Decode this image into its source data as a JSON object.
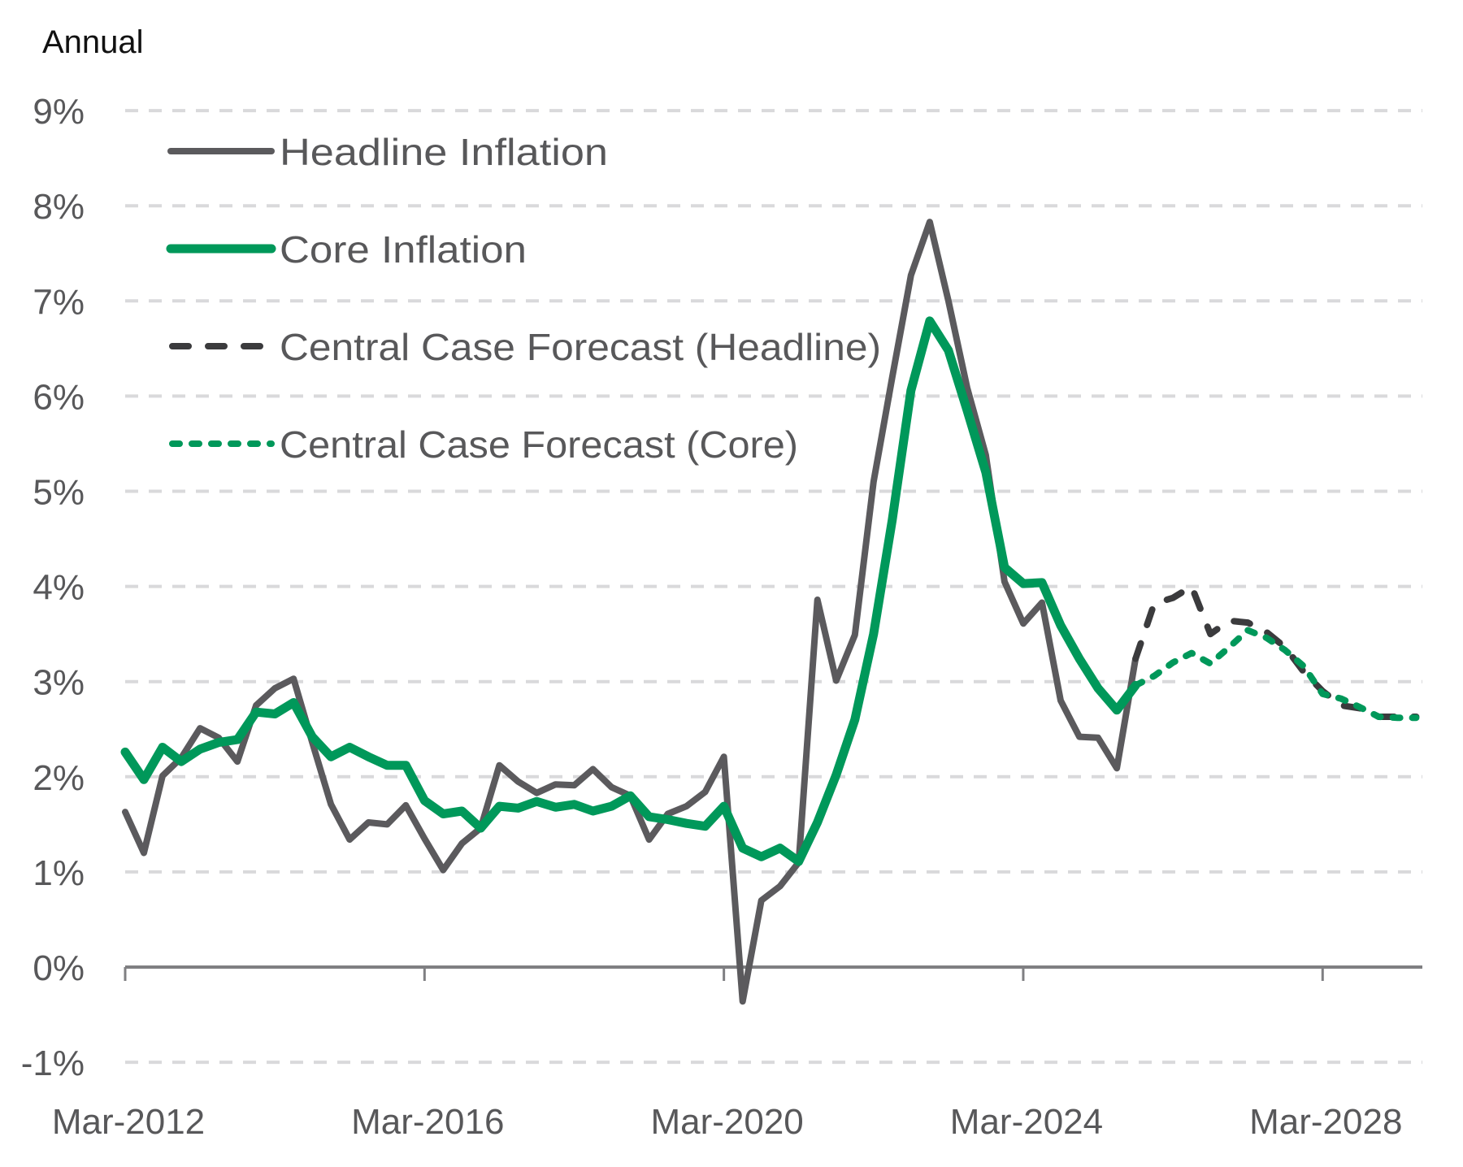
{
  "chart_data": {
    "type": "line",
    "title": "",
    "ylabel": "Annual",
    "xlabel": "",
    "ylim": [
      -1,
      9
    ],
    "yticks": [
      -1,
      0,
      1,
      2,
      3,
      4,
      5,
      6,
      7,
      8,
      9
    ],
    "ytick_labels": [
      "-1%",
      "0%",
      "1%",
      "2%",
      "3%",
      "4%",
      "5%",
      "6%",
      "7%",
      "8%",
      "9%"
    ],
    "xtick_labels": [
      "Mar-2012",
      "Mar-2016",
      "Mar-2020",
      "Mar-2024",
      "Mar-2028"
    ],
    "grid": true,
    "legend_position": "top-left",
    "x": [
      "Mar-2012",
      "Jun-2012",
      "Sep-2012",
      "Dec-2012",
      "Mar-2013",
      "Jun-2013",
      "Sep-2013",
      "Dec-2013",
      "Mar-2014",
      "Jun-2014",
      "Sep-2014",
      "Dec-2014",
      "Mar-2015",
      "Jun-2015",
      "Sep-2015",
      "Dec-2015",
      "Mar-2016",
      "Jun-2016",
      "Sep-2016",
      "Dec-2016",
      "Mar-2017",
      "Jun-2017",
      "Sep-2017",
      "Dec-2017",
      "Mar-2018",
      "Jun-2018",
      "Sep-2018",
      "Dec-2018",
      "Mar-2019",
      "Jun-2019",
      "Sep-2019",
      "Dec-2019",
      "Mar-2020",
      "Jun-2020",
      "Sep-2020",
      "Dec-2020",
      "Mar-2021",
      "Jun-2021",
      "Sep-2021",
      "Dec-2021",
      "Mar-2022",
      "Jun-2022",
      "Sep-2022",
      "Dec-2022",
      "Mar-2023",
      "Jun-2023",
      "Sep-2023",
      "Dec-2023",
      "Mar-2024",
      "Jun-2024",
      "Sep-2024",
      "Dec-2024",
      "Mar-2025",
      "Jun-2025",
      "Sep-2025",
      "Dec-2025",
      "Mar-2026",
      "Jun-2026",
      "Sep-2026",
      "Dec-2026",
      "Mar-2027",
      "Jun-2027",
      "Sep-2027",
      "Dec-2027",
      "Mar-2028",
      "Jun-2028",
      "Sep-2028",
      "Dec-2028",
      "Mar-2029",
      "Jun-2029"
    ],
    "series": [
      {
        "name": "Headline Inflation",
        "style": "solid",
        "color": "#5b5a5d",
        "start_index": 0,
        "values": [
          1.63,
          1.2,
          2.01,
          2.2,
          2.51,
          2.41,
          2.16,
          2.75,
          2.93,
          3.03,
          2.36,
          1.71,
          1.34,
          1.52,
          1.5,
          1.7,
          1.35,
          1.02,
          1.3,
          1.46,
          2.12,
          1.95,
          1.83,
          1.92,
          1.91,
          2.08,
          1.89,
          1.8,
          1.34,
          1.61,
          1.69,
          1.84,
          2.21,
          -0.36,
          0.7,
          0.85,
          1.1,
          3.86,
          3.01,
          3.49,
          5.1,
          6.2,
          7.27,
          7.83,
          7.0,
          6.09,
          5.38,
          4.05,
          3.61,
          3.83,
          2.8,
          2.42,
          2.41,
          2.09,
          3.24
        ]
      },
      {
        "name": "Core Inflation",
        "style": "solid",
        "color": "#00985a",
        "start_index": 0,
        "values": [
          2.26,
          1.97,
          2.31,
          2.16,
          2.29,
          2.36,
          2.39,
          2.68,
          2.66,
          2.78,
          2.42,
          2.21,
          2.31,
          2.21,
          2.12,
          2.12,
          1.75,
          1.61,
          1.64,
          1.46,
          1.69,
          1.67,
          1.74,
          1.68,
          1.71,
          1.64,
          1.69,
          1.8,
          1.58,
          1.55,
          1.51,
          1.48,
          1.69,
          1.25,
          1.16,
          1.25,
          1.11,
          1.52,
          2.02,
          2.6,
          3.5,
          4.7,
          6.06,
          6.79,
          6.48,
          5.85,
          5.2,
          4.2,
          4.03,
          4.04,
          3.59,
          3.24,
          2.93,
          2.7,
          2.96
        ]
      },
      {
        "name": "Central Case Forecast (Headline)",
        "style": "dashed",
        "color": "#3b3b3d",
        "start_index": 54,
        "values": [
          3.24,
          3.82,
          3.88,
          4.0,
          3.5,
          3.64,
          3.62,
          3.52,
          3.36,
          3.1,
          2.9,
          2.75,
          2.72,
          2.63,
          2.63,
          2.63
        ]
      },
      {
        "name": "Central Case Forecast (Core)",
        "style": "short-dashed",
        "color": "#00985a",
        "start_index": 54,
        "values": [
          2.96,
          3.06,
          3.2,
          3.3,
          3.19,
          3.36,
          3.54,
          3.46,
          3.33,
          3.16,
          2.87,
          2.82,
          2.73,
          2.63,
          2.62,
          2.62
        ]
      }
    ]
  }
}
